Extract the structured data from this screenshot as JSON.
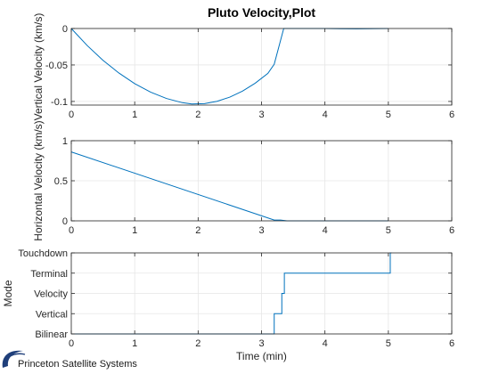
{
  "figure": {
    "footer_text": "Princeton Satellite Systems",
    "accent_color": "#0072BD",
    "logo_color": "#1f3f7a"
  },
  "chart_data": [
    {
      "type": "line",
      "title": "Pluto Velocity,Plot",
      "xlabel": "",
      "ylabel": "Vertical Velocity (km/s)",
      "xlim": [
        0,
        6
      ],
      "ylim": [
        -0.105,
        0
      ],
      "xticks": [
        0,
        1,
        2,
        3,
        4,
        5,
        6
      ],
      "xtick_labels": [
        "0",
        "1",
        "2",
        "3",
        "4",
        "5",
        "6"
      ],
      "yticks": [
        0,
        -0.05,
        -0.1
      ],
      "ytick_labels": [
        "0",
        "-0.05",
        "-0.1"
      ],
      "grid": true,
      "series": [
        {
          "x": [
            0,
            0.25,
            0.5,
            0.75,
            1,
            1.25,
            1.5,
            1.75,
            1.9,
            2.1,
            2.3,
            2.5,
            2.7,
            2.9,
            3.1,
            3.2,
            3.35,
            3.5,
            4.0,
            4.5,
            5.0
          ],
          "y": [
            0,
            -0.0233,
            -0.0436,
            -0.061,
            -0.0756,
            -0.0872,
            -0.0959,
            -0.1017,
            -0.1035,
            -0.103,
            -0.0998,
            -0.0941,
            -0.0858,
            -0.075,
            -0.0616,
            -0.049,
            0,
            0,
            0,
            -0.0005,
            0
          ]
        }
      ]
    },
    {
      "type": "line",
      "title": "",
      "xlabel": "",
      "ylabel": "Horizontal Velocity (km/s)",
      "xlim": [
        0,
        6
      ],
      "ylim": [
        0,
        1
      ],
      "xticks": [
        0,
        1,
        2,
        3,
        4,
        5,
        6
      ],
      "xtick_labels": [
        "0",
        "1",
        "2",
        "3",
        "4",
        "5",
        "6"
      ],
      "yticks": [
        0,
        0.5,
        1
      ],
      "ytick_labels": [
        "0",
        "0.5",
        "1"
      ],
      "grid": true,
      "series": [
        {
          "x": [
            0,
            3.2,
            3.3,
            3.4,
            4.0,
            5.0
          ],
          "y": [
            0.86,
            0.01,
            0.01,
            0,
            0,
            0
          ]
        }
      ]
    },
    {
      "type": "line",
      "title": "",
      "xlabel": "Time (min)",
      "ylabel": "Mode",
      "xlim": [
        0,
        6
      ],
      "ylim": [
        0,
        4
      ],
      "xticks": [
        0,
        1,
        2,
        3,
        4,
        5,
        6
      ],
      "xtick_labels": [
        "0",
        "1",
        "2",
        "3",
        "4",
        "5",
        "6"
      ],
      "yticks": [
        0,
        1,
        2,
        3,
        4
      ],
      "ytick_labels": [
        "Bilinear",
        "Vertical",
        "Velocity",
        "Terminal",
        "Touchdown"
      ],
      "grid": true,
      "series": [
        {
          "step": true,
          "x": [
            0,
            3.2,
            3.32,
            3.36,
            5.03,
            5.05
          ],
          "y": [
            0,
            1,
            2,
            3,
            4,
            4
          ]
        }
      ]
    }
  ]
}
